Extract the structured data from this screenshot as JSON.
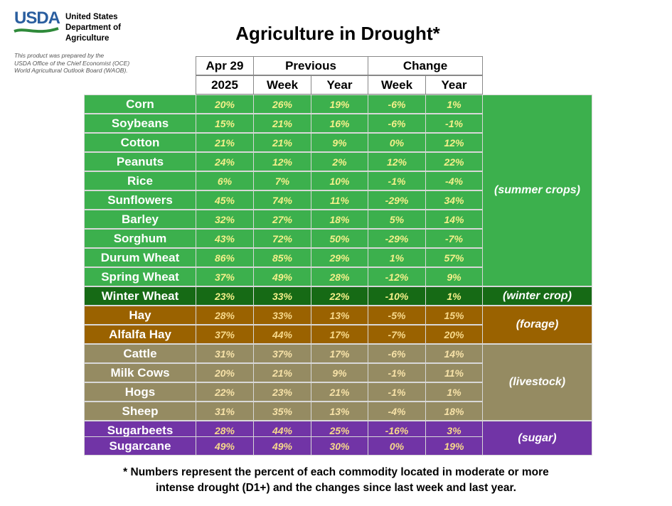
{
  "header": {
    "logo_text": "USDA",
    "org_lines": [
      "United States",
      "Department of",
      "Agriculture"
    ],
    "credit_lines": [
      "This product was prepared by the",
      "USDA Office of the Chief Economist (OCE)",
      "World Agricultural Outlook Board (WAOB)."
    ],
    "title": "Agriculture in Drought*"
  },
  "table": {
    "col_group_1": {
      "top": "Apr 29",
      "bottom": "2025"
    },
    "col_group_2": {
      "top": "Previous",
      "week": "Week",
      "year": "Year"
    },
    "col_group_3": {
      "top": "Change",
      "week": "Week",
      "year": "Year"
    },
    "rows": [
      {
        "name": "Corn",
        "current": "20%",
        "prev_week": "26%",
        "prev_year": "19%",
        "chg_week": "-6%",
        "chg_year": "1%",
        "group": "summer"
      },
      {
        "name": "Soybeans",
        "current": "15%",
        "prev_week": "21%",
        "prev_year": "16%",
        "chg_week": "-6%",
        "chg_year": "-1%",
        "group": "summer"
      },
      {
        "name": "Cotton",
        "current": "21%",
        "prev_week": "21%",
        "prev_year": "9%",
        "chg_week": "0%",
        "chg_year": "12%",
        "group": "summer"
      },
      {
        "name": "Peanuts",
        "current": "24%",
        "prev_week": "12%",
        "prev_year": "2%",
        "chg_week": "12%",
        "chg_year": "22%",
        "group": "summer"
      },
      {
        "name": "Rice",
        "current": "6%",
        "prev_week": "7%",
        "prev_year": "10%",
        "chg_week": "-1%",
        "chg_year": "-4%",
        "group": "summer"
      },
      {
        "name": "Sunflowers",
        "current": "45%",
        "prev_week": "74%",
        "prev_year": "11%",
        "chg_week": "-29%",
        "chg_year": "34%",
        "group": "summer"
      },
      {
        "name": "Barley",
        "current": "32%",
        "prev_week": "27%",
        "prev_year": "18%",
        "chg_week": "5%",
        "chg_year": "14%",
        "group": "summer"
      },
      {
        "name": "Sorghum",
        "current": "43%",
        "prev_week": "72%",
        "prev_year": "50%",
        "chg_week": "-29%",
        "chg_year": "-7%",
        "group": "summer"
      },
      {
        "name": "Durum Wheat",
        "current": "86%",
        "prev_week": "85%",
        "prev_year": "29%",
        "chg_week": "1%",
        "chg_year": "57%",
        "group": "summer"
      },
      {
        "name": "Spring Wheat",
        "current": "37%",
        "prev_week": "49%",
        "prev_year": "28%",
        "chg_week": "-12%",
        "chg_year": "9%",
        "group": "summer"
      },
      {
        "name": "Winter Wheat",
        "current": "23%",
        "prev_week": "33%",
        "prev_year": "22%",
        "chg_week": "-10%",
        "chg_year": "1%",
        "group": "winter"
      },
      {
        "name": "Hay",
        "current": "28%",
        "prev_week": "33%",
        "prev_year": "13%",
        "chg_week": "-5%",
        "chg_year": "15%",
        "group": "forage"
      },
      {
        "name": "Alfalfa Hay",
        "current": "37%",
        "prev_week": "44%",
        "prev_year": "17%",
        "chg_week": "-7%",
        "chg_year": "20%",
        "group": "forage"
      },
      {
        "name": "Cattle",
        "current": "31%",
        "prev_week": "37%",
        "prev_year": "17%",
        "chg_week": "-6%",
        "chg_year": "14%",
        "group": "livestock"
      },
      {
        "name": "Milk Cows",
        "current": "20%",
        "prev_week": "21%",
        "prev_year": "9%",
        "chg_week": "-1%",
        "chg_year": "11%",
        "group": "livestock"
      },
      {
        "name": "Hogs",
        "current": "22%",
        "prev_week": "23%",
        "prev_year": "21%",
        "chg_week": "-1%",
        "chg_year": "1%",
        "group": "livestock"
      },
      {
        "name": "Sheep",
        "current": "31%",
        "prev_week": "35%",
        "prev_year": "13%",
        "chg_week": "-4%",
        "chg_year": "18%",
        "group": "livestock"
      },
      {
        "name": "Sugarbeets",
        "current": "28%",
        "prev_week": "44%",
        "prev_year": "25%",
        "chg_week": "-16%",
        "chg_year": "3%",
        "group": "sugar"
      },
      {
        "name": "Sugarcane",
        "current": "49%",
        "prev_week": "49%",
        "prev_year": "30%",
        "chg_week": "0%",
        "chg_year": "19%",
        "group": "sugar"
      }
    ],
    "groups": {
      "summer": {
        "label": "(summer crops)",
        "bg": "#3cb04d",
        "value_color": "#f5f08a"
      },
      "winter": {
        "label": "(winter crop)",
        "bg": "#166a15",
        "value_color": "#f5f08a"
      },
      "forage": {
        "label": "(forage)",
        "bg": "#9a6200",
        "value_color": "#f7d98b"
      },
      "livestock": {
        "label": "(livestock)",
        "bg": "#958b62",
        "value_color": "#f7e2a8"
      },
      "sugar": {
        "label": "(sugar)",
        "bg": "#7134a6",
        "value_color": "#f7d98b"
      }
    }
  },
  "footnote": [
    "* Numbers represent the percent of each commodity located in moderate or more",
    "intense drought (D1+) and the changes since last week and last year."
  ]
}
